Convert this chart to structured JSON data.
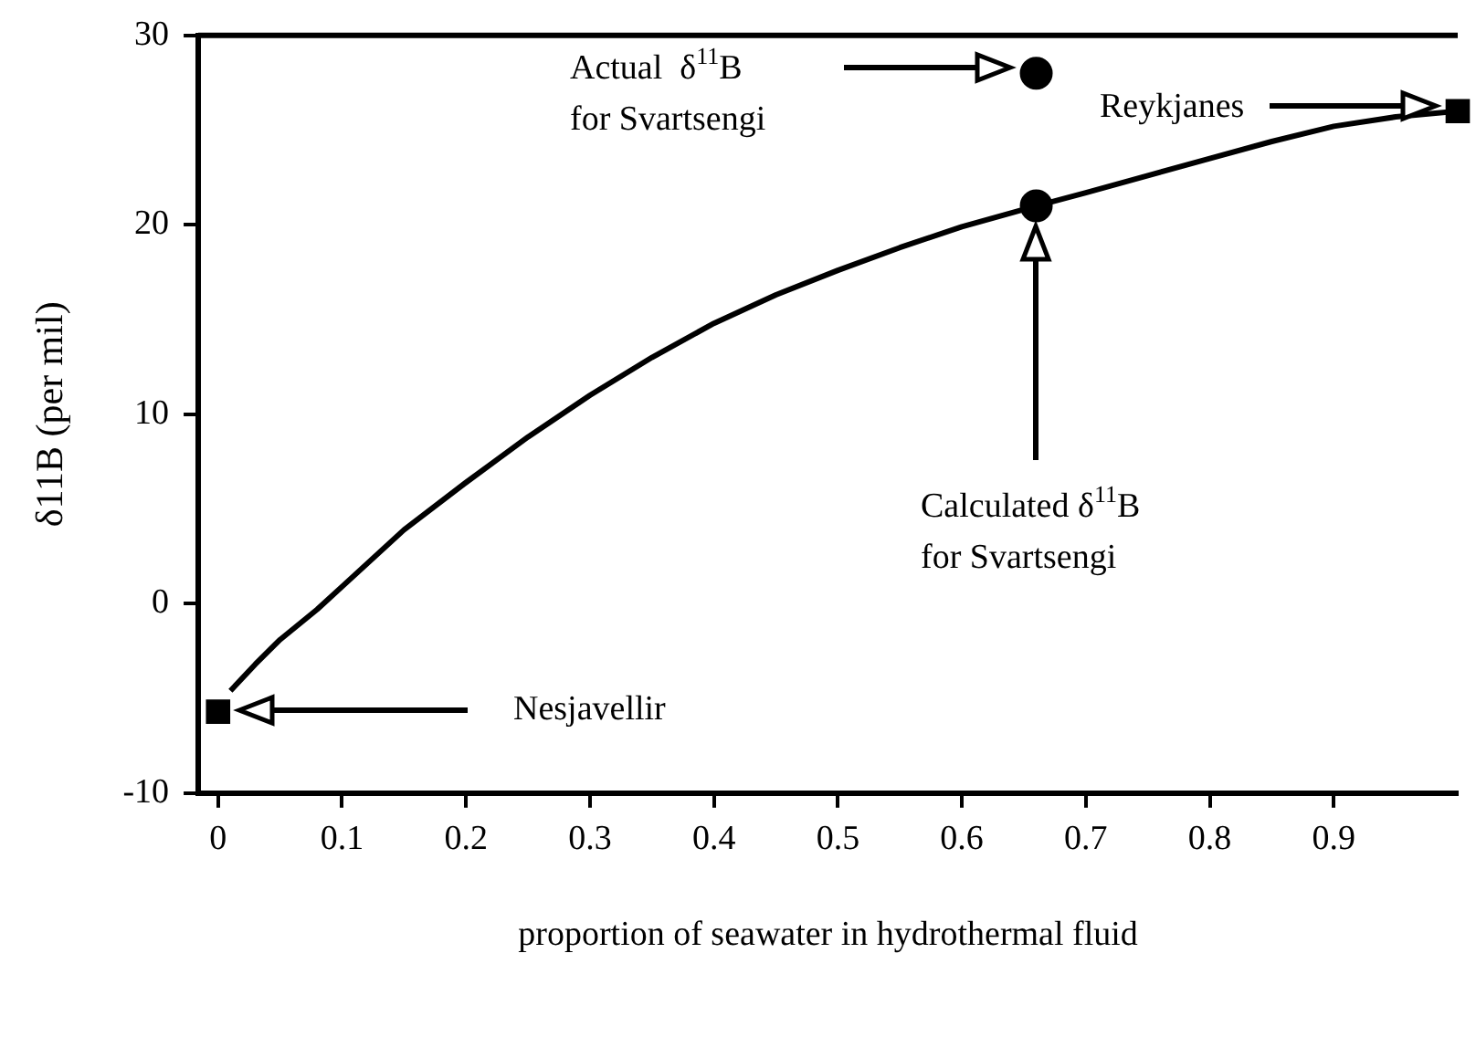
{
  "chart_data": {
    "type": "line",
    "xlabel": "proportion of seawater in hydrothermal fluid",
    "ylabel": "δ11B (per mil)",
    "xlim": [
      -0.016,
      1.0
    ],
    "xticks": [
      0,
      0.1,
      0.2,
      0.3,
      0.4,
      0.5,
      0.6,
      0.7,
      0.8,
      0.9
    ],
    "ylim": [
      -10,
      30
    ],
    "yticks": [
      -10,
      0,
      10,
      20,
      30
    ],
    "grid": false,
    "legend": false,
    "series": [
      {
        "color": "#000000",
        "marker": "none",
        "line_style": "solid",
        "x": [
          0.01,
          0.03,
          0.05,
          0.08,
          0.1,
          0.15,
          0.2,
          0.25,
          0.3,
          0.35,
          0.4,
          0.45,
          0.5,
          0.55,
          0.6,
          0.66,
          0.7,
          0.75,
          0.8,
          0.85,
          0.9,
          0.95,
          1.0
        ],
        "values": [
          -4.6,
          -3.2,
          -1.9,
          -0.3,
          0.9,
          3.9,
          6.4,
          8.8,
          11.0,
          13.0,
          14.8,
          16.3,
          17.6,
          18.8,
          19.9,
          21.0,
          21.7,
          22.6,
          23.5,
          24.4,
          25.2,
          25.7,
          26.0
        ]
      },
      {
        "type": "scatter",
        "color": "#000000",
        "marker": "square",
        "x": [
          0,
          1.0
        ],
        "values": [
          -5.7,
          26.0
        ]
      },
      {
        "type": "scatter",
        "color": "#000000",
        "marker": "circle",
        "x": [
          0.66
        ],
        "values": [
          28
        ]
      },
      {
        "type": "scatter",
        "color": "#000000",
        "marker": "circle",
        "x": [
          0.66
        ],
        "values": [
          21
        ]
      }
    ],
    "annotations": [
      "Actual  δ$^{11}$B\nfor Svartsengi",
      "Reykjanes",
      "Calculated δ$^{11}$B\nfor Svartsengi",
      "Nesjavellir"
    ]
  }
}
